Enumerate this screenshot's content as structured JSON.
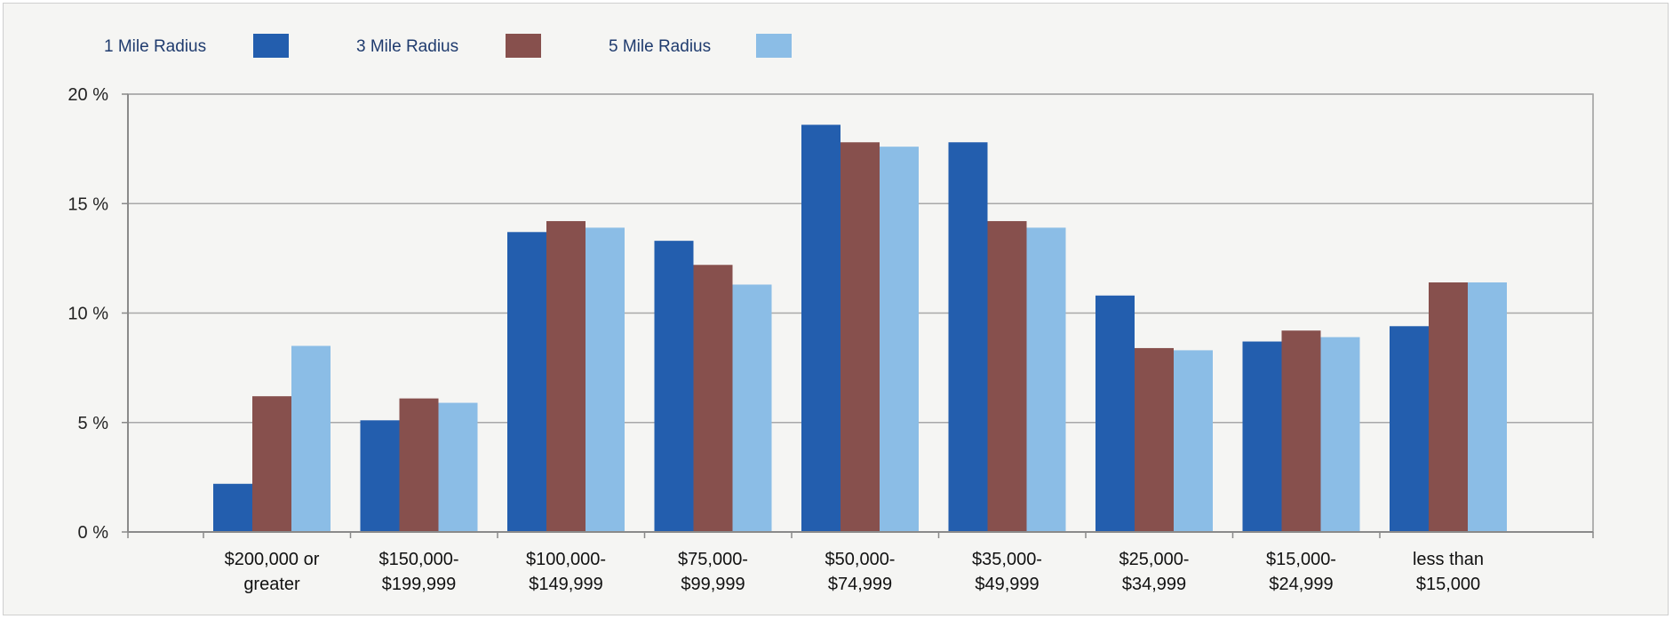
{
  "chart_data": {
    "type": "bar",
    "categories": [
      [
        "$200,000 or",
        "greater"
      ],
      [
        "$150,000-",
        "$199,999"
      ],
      [
        "$100,000-",
        "$149,999"
      ],
      [
        "$75,000-",
        "$99,999"
      ],
      [
        "$50,000-",
        "$74,999"
      ],
      [
        "$35,000-",
        "$49,999"
      ],
      [
        "$25,000-",
        "$34,999"
      ],
      [
        "$15,000-",
        "$24,999"
      ],
      [
        "less than",
        "$15,000"
      ]
    ],
    "series": [
      {
        "name": "1 Mile Radius",
        "color": "#235eae",
        "values": [
          2.2,
          5.1,
          13.7,
          13.3,
          18.6,
          17.8,
          10.8,
          8.7,
          9.4
        ]
      },
      {
        "name": "3 Mile Radius",
        "color": "#87504d",
        "values": [
          6.2,
          6.1,
          14.2,
          12.2,
          17.8,
          14.2,
          8.4,
          9.2,
          11.4
        ]
      },
      {
        "name": "5 Mile Radius",
        "color": "#8bbde6",
        "values": [
          8.5,
          5.9,
          13.9,
          11.3,
          17.6,
          13.9,
          8.3,
          8.9,
          11.4
        ]
      }
    ],
    "ylim": [
      0,
      20
    ],
    "yticks": [
      {
        "value": 0,
        "label": "0 %"
      },
      {
        "value": 5,
        "label": "5 %"
      },
      {
        "value": 10,
        "label": "10 %"
      },
      {
        "value": 15,
        "label": "15 %"
      },
      {
        "value": 20,
        "label": "20 %"
      }
    ],
    "grid": true,
    "legend_position": "top-left"
  }
}
